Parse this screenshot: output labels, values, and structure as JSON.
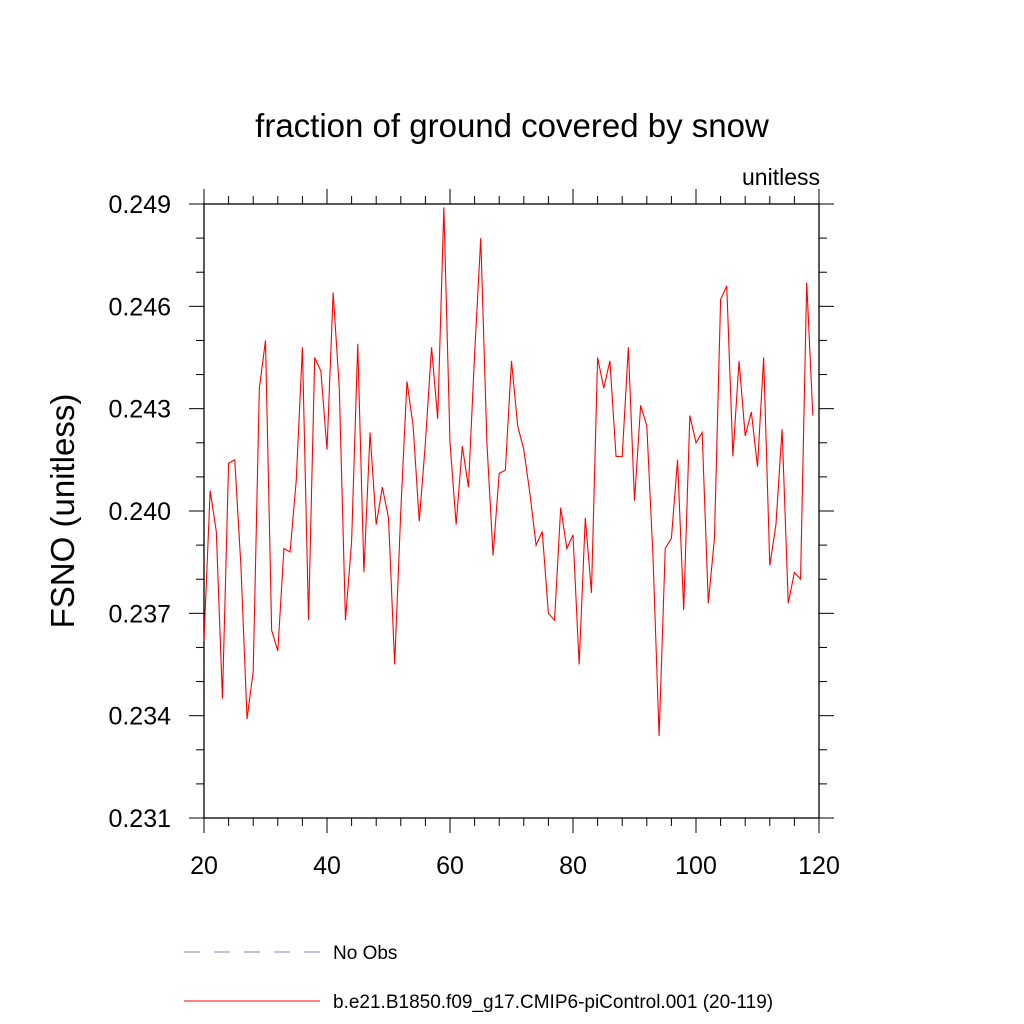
{
  "chart_data": {
    "type": "line",
    "title": "fraction of ground covered by snow",
    "units_label": "unitless",
    "ylabel": "FSNO  (unitless)",
    "xlabel": "",
    "xlim": [
      20,
      120
    ],
    "ylim": [
      0.231,
      0.249
    ],
    "xticks": [
      {
        "value": 20,
        "label": "20"
      },
      {
        "value": 40,
        "label": "40"
      },
      {
        "value": 60,
        "label": "60"
      },
      {
        "value": 80,
        "label": "80"
      },
      {
        "value": 100,
        "label": "100"
      },
      {
        "value": 120,
        "label": "120"
      }
    ],
    "yticks": [
      {
        "value": 0.231,
        "label": "0.231"
      },
      {
        "value": 0.234,
        "label": "0.234"
      },
      {
        "value": 0.237,
        "label": "0.237"
      },
      {
        "value": 0.24,
        "label": "0.240"
      },
      {
        "value": 0.243,
        "label": "0.243"
      },
      {
        "value": 0.246,
        "label": "0.246"
      },
      {
        "value": 0.249,
        "label": "0.249"
      }
    ],
    "yminor_step": 0.001,
    "xminor_step": 4,
    "legend": [
      {
        "name": "No Obs",
        "color": "#8a7fc6",
        "style": "dashed"
      },
      {
        "name": "b.e21.B1850.f09_g17.CMIP6-piControl.001 (20-119)",
        "color": "#ff0000",
        "style": "solid"
      }
    ],
    "series": [
      {
        "name": "b.e21.B1850.f09_g17.CMIP6-piControl.001 (20-119)",
        "color": "#ff0000",
        "x_start": 20,
        "x_step": 1,
        "values": [
          0.2362,
          0.2406,
          0.2394,
          0.2345,
          0.2414,
          0.2415,
          0.2384,
          0.2339,
          0.2353,
          0.2436,
          0.245,
          0.2365,
          0.2359,
          0.2389,
          0.2388,
          0.2409,
          0.2448,
          0.2368,
          0.2445,
          0.2441,
          0.2418,
          0.2464,
          0.2436,
          0.2368,
          0.2391,
          0.2449,
          0.2382,
          0.2423,
          0.2396,
          0.2407,
          0.2398,
          0.2355,
          0.24,
          0.2438,
          0.2425,
          0.2397,
          0.242,
          0.2448,
          0.2427,
          0.2489,
          0.242,
          0.2396,
          0.2419,
          0.2407,
          0.2446,
          0.248,
          0.242,
          0.2387,
          0.2411,
          0.2412,
          0.2444,
          0.2425,
          0.2418,
          0.2405,
          0.239,
          0.2394,
          0.237,
          0.2368,
          0.2401,
          0.2389,
          0.2393,
          0.2355,
          0.2398,
          0.2376,
          0.2445,
          0.2436,
          0.2444,
          0.2416,
          0.2416,
          0.2448,
          0.2403,
          0.2431,
          0.2425,
          0.2387,
          0.2334,
          0.2389,
          0.2392,
          0.2415,
          0.2371,
          0.2428,
          0.242,
          0.2423,
          0.2373,
          0.2392,
          0.2462,
          0.2466,
          0.2416,
          0.2444,
          0.2422,
          0.2429,
          0.2413,
          0.2445,
          0.2384,
          0.2396,
          0.2424,
          0.2373,
          0.2382,
          0.238,
          0.2467,
          0.2428
        ]
      }
    ]
  }
}
